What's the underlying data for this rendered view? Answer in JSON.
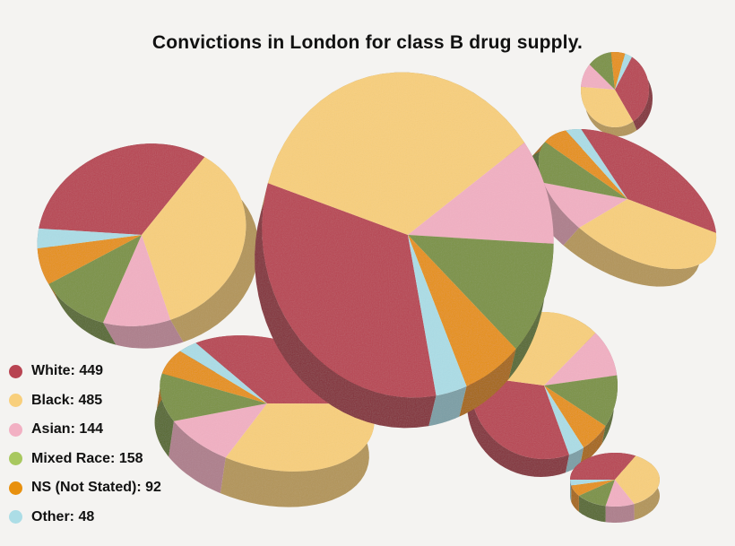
{
  "chart_data": {
    "type": "pie",
    "title": "Convictions in London for class B drug supply.",
    "categories": [
      "White",
      "Black",
      "Asian",
      "Mixed Race",
      "NS (Not Stated)",
      "Other"
    ],
    "values": [
      449,
      485,
      144,
      158,
      92,
      48
    ],
    "legend": {
      "placement": "bottom-left",
      "entries": [
        {
          "key": "white",
          "label": "White: 449",
          "color": "#b84452"
        },
        {
          "key": "black",
          "label": "Black: 485",
          "color": "#f8cf7c"
        },
        {
          "key": "asian",
          "label": "Asian: 144",
          "color": "#f2b0c3"
        },
        {
          "key": "mixed",
          "label": "Mixed Race: 158",
          "color": "#a8c85f"
        },
        {
          "key": "ns",
          "label": "NS (Not Stated): 92",
          "color": "#e8900e"
        },
        {
          "key": "other",
          "label": "Other: 48",
          "color": "#acdde6"
        }
      ]
    },
    "colors": {
      "white": "#b84452",
      "black": "#f8cf7c",
      "asian": "#f2b0c3",
      "mixed": "#7b9345",
      "ns": "#e6910f",
      "other": "#acdde6",
      "background": "#f4f3f1"
    }
  }
}
